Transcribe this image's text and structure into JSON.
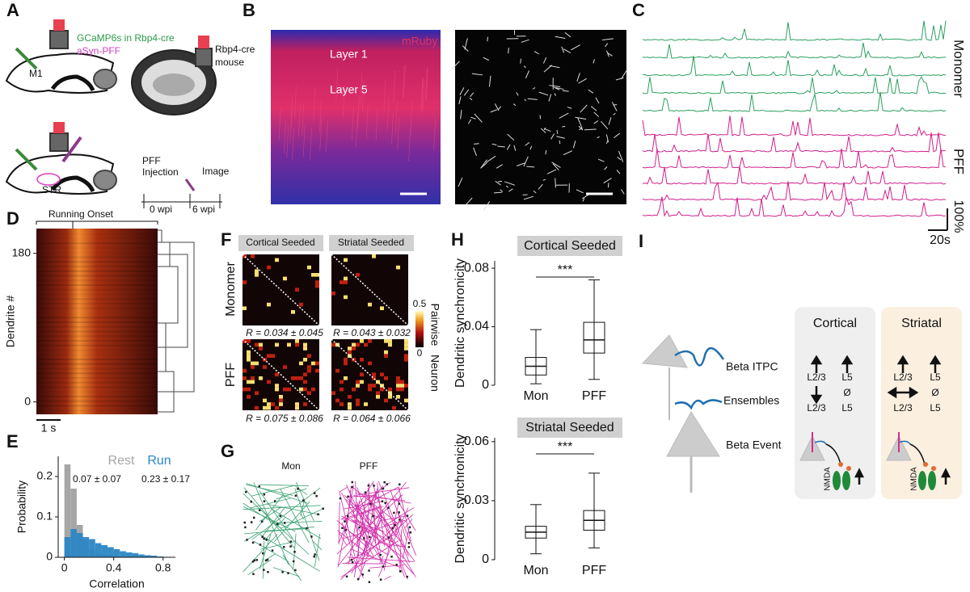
{
  "panel_letters": [
    "A",
    "B",
    "C",
    "D",
    "E",
    "F",
    "G",
    "H",
    "I"
  ],
  "panel_a": {
    "virus": "GCaMP6s in Rbp4-cre",
    "pff": "aSyn-PFF",
    "m1": "M1",
    "mouse": [
      "Rbp4-cre",
      "mouse"
    ],
    "str": "STR",
    "injection": [
      "PFF",
      "Injection"
    ],
    "image": "Image",
    "weeks": [
      "0 wpi",
      "6 wpi"
    ]
  },
  "panel_b": {
    "stain": "mRuby",
    "layers": [
      "Layer 1",
      "Layer 5"
    ]
  },
  "panel_c": {
    "groups": [
      "Monomer",
      "PFF"
    ],
    "scale_y": "100%",
    "scale_x": "20s"
  },
  "panel_d": {
    "onset": "Running Onset",
    "ylabel": "Dendrite #",
    "ylim": [
      -15,
      210
    ],
    "yticks": [
      180,
      0
    ],
    "scale": "1 s"
  },
  "panel_f": {
    "columns": [
      "Cortical Seeded",
      "Striatal Seeded"
    ],
    "rows": [
      "Monomer",
      "PFF"
    ],
    "stats": [
      "R = 0.034 ± 0.045",
      "R = 0.043 ± 0.032",
      "R = 0.075 ± 0.086",
      "R = 0.064 ± 0.066"
    ],
    "colorbar_ticks": [
      "0.5",
      "0"
    ],
    "colorbar_label": [
      "Pairwise",
      "Neuron"
    ]
  },
  "panel_g": {
    "groups": [
      "Mon",
      "PFF"
    ]
  },
  "panel_i": {
    "columns": [
      "Cortical",
      "Striatal"
    ],
    "rows": [
      "Beta ITPC",
      "Ensembles",
      "Beta Event"
    ],
    "cortical": [
      "L2/3",
      "L5",
      "L2/3",
      "Ø",
      "L5"
    ],
    "striatal": [
      "L2/3",
      "L5",
      "L2/3",
      "Ø",
      "L5"
    ],
    "receptor": [
      "NMDA",
      "NMDA"
    ]
  },
  "chart_data": [
    {
      "type": "histogram",
      "xlabel": "Correlation",
      "ylabel": "Probability",
      "xlim": [
        -0.05,
        0.9
      ],
      "ylim": [
        0,
        0.25
      ],
      "xticks": [
        0,
        0.4,
        0.8
      ],
      "yticks": [
        0,
        0.1,
        0.2
      ],
      "bins": [
        0,
        0.05,
        0.1,
        0.15,
        0.2,
        0.25,
        0.3,
        0.35,
        0.4,
        0.45,
        0.5,
        0.55,
        0.6,
        0.65,
        0.7,
        0.75,
        0.8
      ],
      "series": [
        {
          "name": "Rest",
          "color": "#a6a6a6",
          "stat": "0.07 ± 0.07",
          "values": [
            0.23,
            0.17,
            0.08,
            0.04,
            0.02,
            0.01,
            0.006,
            0.004,
            0.002,
            0.001,
            0,
            0,
            0,
            0,
            0,
            0
          ]
        },
        {
          "name": "Run",
          "color": "#2a86c4",
          "stat": "0.23 ± 0.17",
          "values": [
            0.05,
            0.07,
            0.06,
            0.05,
            0.045,
            0.035,
            0.03,
            0.025,
            0.02,
            0.015,
            0.012,
            0.01,
            0.007,
            0.005,
            0.004,
            0.002
          ]
        }
      ]
    },
    {
      "type": "box",
      "title": "Cortical Seeded",
      "ylabel": "Dendritic synchronicity",
      "significance": "***",
      "categories": [
        "Mon",
        "PFF"
      ],
      "ylim": [
        0,
        0.085
      ],
      "yticks": [
        0,
        0.04,
        0.08
      ],
      "boxes": [
        {
          "min": 0.001,
          "q1": 0.007,
          "median": 0.013,
          "q3": 0.019,
          "max": 0.038
        },
        {
          "min": 0.004,
          "q1": 0.022,
          "median": 0.031,
          "q3": 0.043,
          "max": 0.072
        }
      ]
    },
    {
      "type": "box",
      "title": "Striatal Seeded",
      "ylabel": "Dendritic synchronicity",
      "significance": "***",
      "categories": [
        "Mon",
        "PFF"
      ],
      "ylim": [
        0,
        0.062
      ],
      "yticks": [
        0,
        0.03,
        0.06
      ],
      "boxes": [
        {
          "min": 0.003,
          "q1": 0.011,
          "median": 0.014,
          "q3": 0.017,
          "max": 0.028
        },
        {
          "min": 0.006,
          "q1": 0.015,
          "median": 0.02,
          "q3": 0.025,
          "max": 0.044
        }
      ]
    }
  ]
}
